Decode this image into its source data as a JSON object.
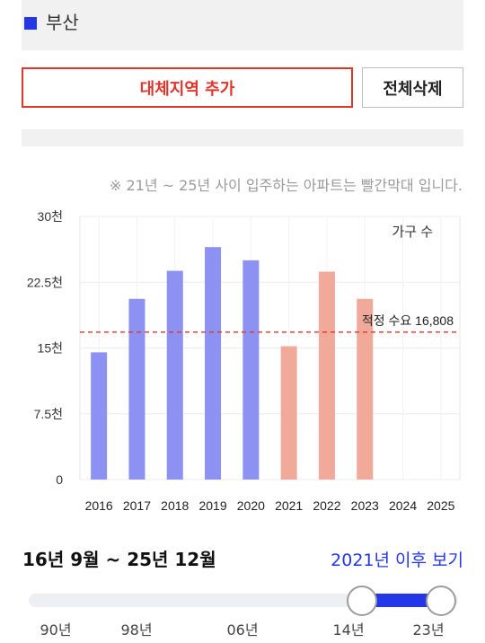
{
  "region": {
    "name": "부산",
    "marker_color": "#2336e8"
  },
  "buttons": {
    "add_label": "대체지역 추가",
    "delete_all_label": "전체삭제"
  },
  "chart_note": "※ 21년 ~ 25년 사이 입주하는 아파트는 빨간막대 입니다.",
  "chart_data": {
    "type": "bar",
    "categories": [
      "2016",
      "2017",
      "2018",
      "2019",
      "2020",
      "2021",
      "2022",
      "2023",
      "2024",
      "2025"
    ],
    "series": [
      {
        "values": [
          14500,
          20600,
          23800,
          26500,
          25000,
          15200,
          23700,
          20600,
          null,
          null
        ]
      }
    ],
    "bar_colors": [
      "#8c91f2",
      "#8c91f2",
      "#8c91f2",
      "#8c91f2",
      "#8c91f2",
      "#f1aa99",
      "#f1aa99",
      "#f1aa99",
      "#f1aa99",
      "#f1aa99"
    ],
    "past_color": "#8c91f2",
    "future_color": "#f1aa99",
    "ylim": [
      0,
      30000
    ],
    "ytick_labels": [
      "0",
      "7.5천",
      "15천",
      "22.5천",
      "30천"
    ],
    "ytick_values": [
      0,
      7500,
      15000,
      22500,
      30000
    ],
    "legend_label": "가구 수",
    "reference_line": {
      "value": 16808,
      "label": "적정 수요 16,808",
      "color": "#e0352b"
    },
    "grid": true
  },
  "period_label": "16년 9월 ~ 25년 12월",
  "after_link": "2021년 이후 보기",
  "slider": {
    "ticks": [
      "90년",
      "98년",
      "06년",
      "14년",
      "23년"
    ],
    "selected_start": "14년",
    "selected_end": "23년",
    "fill_color": "#2336e8"
  }
}
